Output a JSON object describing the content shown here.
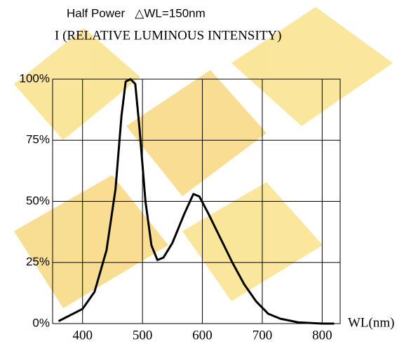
{
  "chart_data": {
    "type": "line",
    "title": "Half Power   △WL=150nm",
    "y_label": "I (RELATIVE LUMINOUS INTENSITY)",
    "x_label": "WL(nm)",
    "x": [
      360,
      400,
      420,
      440,
      455,
      465,
      472,
      480,
      488,
      495,
      505,
      515,
      525,
      535,
      550,
      570,
      585,
      595,
      610,
      630,
      650,
      670,
      690,
      710,
      730,
      760,
      800,
      820
    ],
    "series": [
      {
        "color": "#000000",
        "values": [
          1,
          6,
          13,
          30,
          55,
          85,
          99,
          100,
          98,
          80,
          50,
          32,
          26,
          27,
          33,
          45,
          53,
          52,
          45,
          35,
          25,
          16,
          9,
          4,
          2,
          0.5,
          0,
          0
        ]
      }
    ],
    "xlim": [
      350,
      830
    ],
    "xticks": [
      400,
      500,
      600,
      700,
      800
    ],
    "ylim": [
      0,
      100
    ],
    "yticks": [
      {
        "value": 0,
        "label": "0%"
      },
      {
        "value": 25,
        "label": "25%"
      },
      {
        "value": 50,
        "label": "50%"
      },
      {
        "value": 75,
        "label": "75%"
      },
      {
        "value": 100,
        "label": "100%"
      }
    ],
    "grid": true
  }
}
